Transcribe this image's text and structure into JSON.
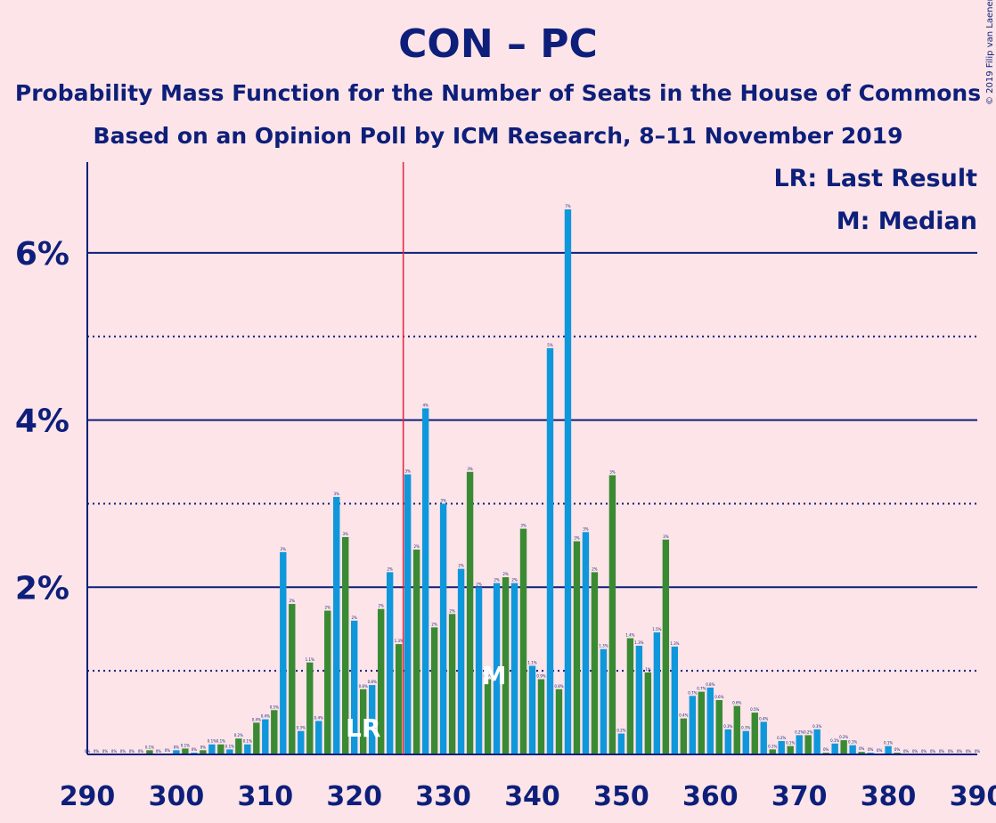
{
  "chart_data": {
    "type": "bar",
    "title": "CON – PC",
    "subtitle": "Probability Mass Function for the Number of Seats in the House of Commons",
    "subtitle2": "Based on an Opinion Poll by ICM Research, 8–11 November 2019",
    "copyright": "© 2019 Filip van Laenen",
    "legend": [
      "LR: Last Result",
      "M: Median"
    ],
    "legend_position": "top-right",
    "x_start": 290,
    "x_end": 390,
    "xticks": [
      "290",
      "300",
      "310",
      "320",
      "330",
      "340",
      "350",
      "360",
      "370",
      "380",
      "390"
    ],
    "yticks": [
      "2%",
      "4%",
      "6%"
    ],
    "ylim": [
      0,
      7.1
    ],
    "y_solid_lines": [
      2,
      4,
      6
    ],
    "y_dotted_lines": [
      1,
      3,
      5
    ],
    "last_result": 326,
    "last_result_label": "LR",
    "last_result_marker_seat": 321,
    "median": 336,
    "median_label": "M",
    "colors": {
      "blue": "#0f97dc",
      "green": "#3a8a33",
      "axis": "#0d1f7a",
      "last_result_line": "#e3223c",
      "background": "#fce4e8"
    },
    "values": [
      0,
      0,
      0,
      0,
      0,
      0,
      0,
      0.05,
      0,
      0.01,
      0.05,
      0.07,
      0.02,
      0.05,
      0.12,
      0.12,
      0.06,
      0.19,
      0.12,
      0.38,
      0.42,
      0.53,
      2.42,
      1.8,
      0.28,
      1.1,
      0.4,
      1.72,
      3.08,
      2.6,
      1.6,
      0.78,
      0.83,
      1.74,
      2.18,
      1.32,
      3.35,
      2.45,
      4.14,
      1.52,
      3.0,
      1.68,
      2.22,
      3.38,
      2.0,
      0.9,
      2.05,
      2.12,
      2.05,
      2.7,
      1.06,
      0.9,
      4.86,
      0.78,
      6.52,
      2.55,
      2.66,
      2.18,
      1.26,
      3.34,
      0.25,
      1.39,
      1.3,
      0.98,
      1.46,
      2.57,
      1.29,
      0.43,
      0.7,
      0.75,
      0.8,
      0.65,
      0.3,
      0.58,
      0.28,
      0.5,
      0.39,
      0.06,
      0.16,
      0.1,
      0.23,
      0.23,
      0.3,
      0.02,
      0.13,
      0.17,
      0.11,
      0.03,
      0.02,
      0.01,
      0.1,
      0.02,
      0,
      0,
      0,
      0,
      0,
      0,
      0,
      0,
      0
    ],
    "labels": [
      "0%",
      "0%",
      "0%",
      "0%",
      "0%",
      "0%",
      "0%",
      "0.1%",
      "0%",
      "0%",
      "0%",
      "0.1%",
      "0%",
      "0%",
      "0.1%",
      "0.1%",
      "0.1%",
      "0.2%",
      "0.1%",
      "0.4%",
      "0.4%",
      "0.5%",
      "2%",
      "2%",
      "0.3%",
      "1.1%",
      "0.4%",
      "2%",
      "3%",
      "3%",
      "2%",
      "0.8%",
      "0.8%",
      "2%",
      "2%",
      "1.3%",
      "3%",
      "2%",
      "4%",
      "2%",
      "3%",
      "2%",
      "2%",
      "3%",
      "2%",
      "0.9%",
      "2%",
      "2%",
      "2%",
      "3%",
      "1.1%",
      "0.9%",
      "5%",
      "0.8%",
      "7%",
      "3%",
      "3%",
      "2%",
      "1.3%",
      "3%",
      "0.2%",
      "1.4%",
      "1.3%",
      "1%",
      "1.5%",
      "3%",
      "1.3%",
      "0.4%",
      "0.7%",
      "0.7%",
      "0.8%",
      "0.6%",
      "0.3%",
      "0.6%",
      "0.3%",
      "0.5%",
      "0.4%",
      "0.1%",
      "0.2%",
      "0.1%",
      "0.2%",
      "0.2%",
      "0.3%",
      "0%",
      "0.1%",
      "0.2%",
      "0.1%",
      "0%",
      "0%",
      "0%",
      "0.1%",
      "0%",
      "0%",
      "0%",
      "0%",
      "0%",
      "0%",
      "0%",
      "0%",
      "0%",
      "0%"
    ]
  }
}
